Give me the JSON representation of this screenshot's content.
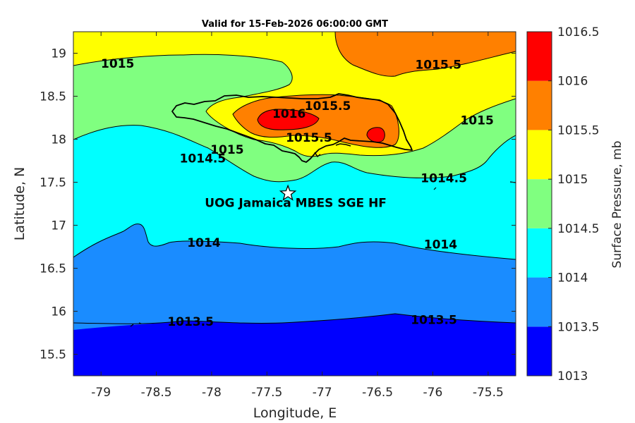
{
  "chart_data": {
    "type": "contour-map",
    "title": "Valid for 15-Feb-2026 06:00:00 GMT",
    "xlabel": "Longitude, E",
    "ylabel": "Latitude, N",
    "xlim": [
      -79.25,
      -75.25
    ],
    "ylim": [
      15.25,
      19.25
    ],
    "xticks": [
      -79,
      -78.5,
      -78,
      -77.5,
      -77,
      -76.5,
      -76,
      -75.5
    ],
    "yticks": [
      15.5,
      16,
      16.5,
      17,
      17.5,
      18,
      18.5,
      19
    ],
    "colorbar": {
      "label": "Surface Pressure, mb",
      "levels": [
        1013,
        1013.5,
        1014,
        1014.5,
        1015,
        1015.5,
        1016,
        1016.5
      ],
      "colors": [
        "#0000ff",
        "#1a8cff",
        "#00ffff",
        "#80ff80",
        "#ffff00",
        "#ff8000",
        "#ff0000",
        "#800000"
      ]
    },
    "contour_labels": [
      {
        "text": "1015",
        "lon": -78.85,
        "lat": 18.88
      },
      {
        "text": "1015.5",
        "lon": -75.95,
        "lat": 18.87
      },
      {
        "text": "1015.5",
        "lon": -76.95,
        "lat": 18.39
      },
      {
        "text": "1016",
        "lon": -77.3,
        "lat": 18.3
      },
      {
        "text": "1015.5",
        "lon": -77.12,
        "lat": 18.02
      },
      {
        "text": "1015",
        "lon": -75.6,
        "lat": 18.22
      },
      {
        "text": "1015",
        "lon": -77.86,
        "lat": 17.88
      },
      {
        "text": "1014.5",
        "lon": -78.08,
        "lat": 17.78
      },
      {
        "text": "1014.5",
        "lon": -75.9,
        "lat": 17.55
      },
      {
        "text": "1014",
        "lon": -78.07,
        "lat": 16.8
      },
      {
        "text": "1014",
        "lon": -75.93,
        "lat": 16.78
      },
      {
        "text": "1013.5",
        "lon": -78.19,
        "lat": 15.88
      },
      {
        "text": "1013.5",
        "lon": -75.99,
        "lat": 15.9
      }
    ],
    "station": {
      "name": "UOG Jamaica MBES SGE HF",
      "lon": -77.31,
      "lat": 17.37
    }
  }
}
